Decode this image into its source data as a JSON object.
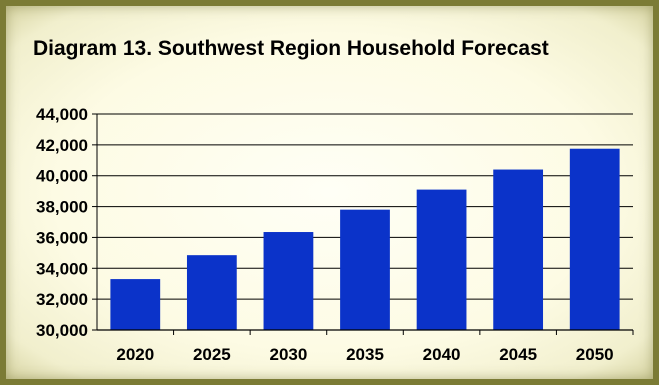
{
  "chart_data": {
    "type": "bar",
    "title": "Diagram 13. Southwest Region Household Forecast",
    "xlabel": "",
    "ylabel": "",
    "categories": [
      "2020",
      "2025",
      "2030",
      "2035",
      "2040",
      "2045",
      "2050"
    ],
    "values": [
      33300,
      34850,
      36350,
      37800,
      39100,
      40400,
      41750
    ],
    "ylim": [
      30000,
      44000
    ],
    "yticks": [
      30000,
      32000,
      34000,
      36000,
      38000,
      40000,
      42000,
      44000
    ],
    "ytick_labels": [
      "30,000",
      "32,000",
      "34,000",
      "36,000",
      "38,000",
      "40,000",
      "42,000",
      "44,000"
    ],
    "grid": true,
    "legend": "none",
    "colors": {
      "bar": "#0b33c9",
      "grid": "#000000",
      "frame": "#7b7b35",
      "background": "#fdfbe4"
    }
  }
}
